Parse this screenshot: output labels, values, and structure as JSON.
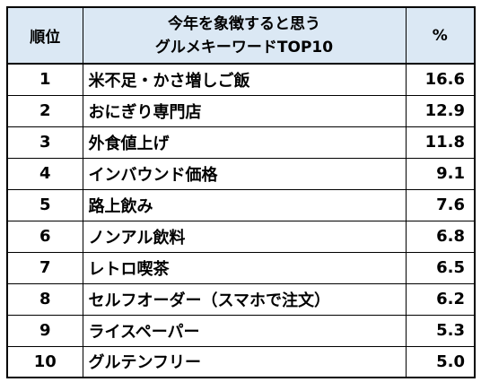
{
  "header": {
    "rank_label": "順位",
    "title_line1": "今年を象徴すると思う",
    "title_line2": "グルメキーワードTOP10",
    "pct_label": "%"
  },
  "rows": [
    {
      "rank": "1",
      "keyword": "米不足・かさ増しご飯",
      "percent": "16.6"
    },
    {
      "rank": "2",
      "keyword": "おにぎり専門店",
      "percent": "12.9"
    },
    {
      "rank": "3",
      "keyword": "外食値上げ",
      "percent": "11.8"
    },
    {
      "rank": "4",
      "keyword": "インバウンド価格",
      "percent": "9.1"
    },
    {
      "rank": "5",
      "keyword": "路上飲み",
      "percent": "7.6"
    },
    {
      "rank": "6",
      "keyword": "ノンアル飲料",
      "percent": "6.8"
    },
    {
      "rank": "7",
      "keyword": "レトロ喫茶",
      "percent": "6.5"
    },
    {
      "rank": "8",
      "keyword": "セルフオーダー（スマホで注文）",
      "percent": "6.2"
    },
    {
      "rank": "9",
      "keyword": "ライスペーパー",
      "percent": "5.3"
    },
    {
      "rank": "10",
      "keyword": "グルテンフリー",
      "percent": "5.0"
    }
  ],
  "colors": {
    "header_background": "#dbe8f4",
    "border": "#000000",
    "text": "#000000"
  }
}
